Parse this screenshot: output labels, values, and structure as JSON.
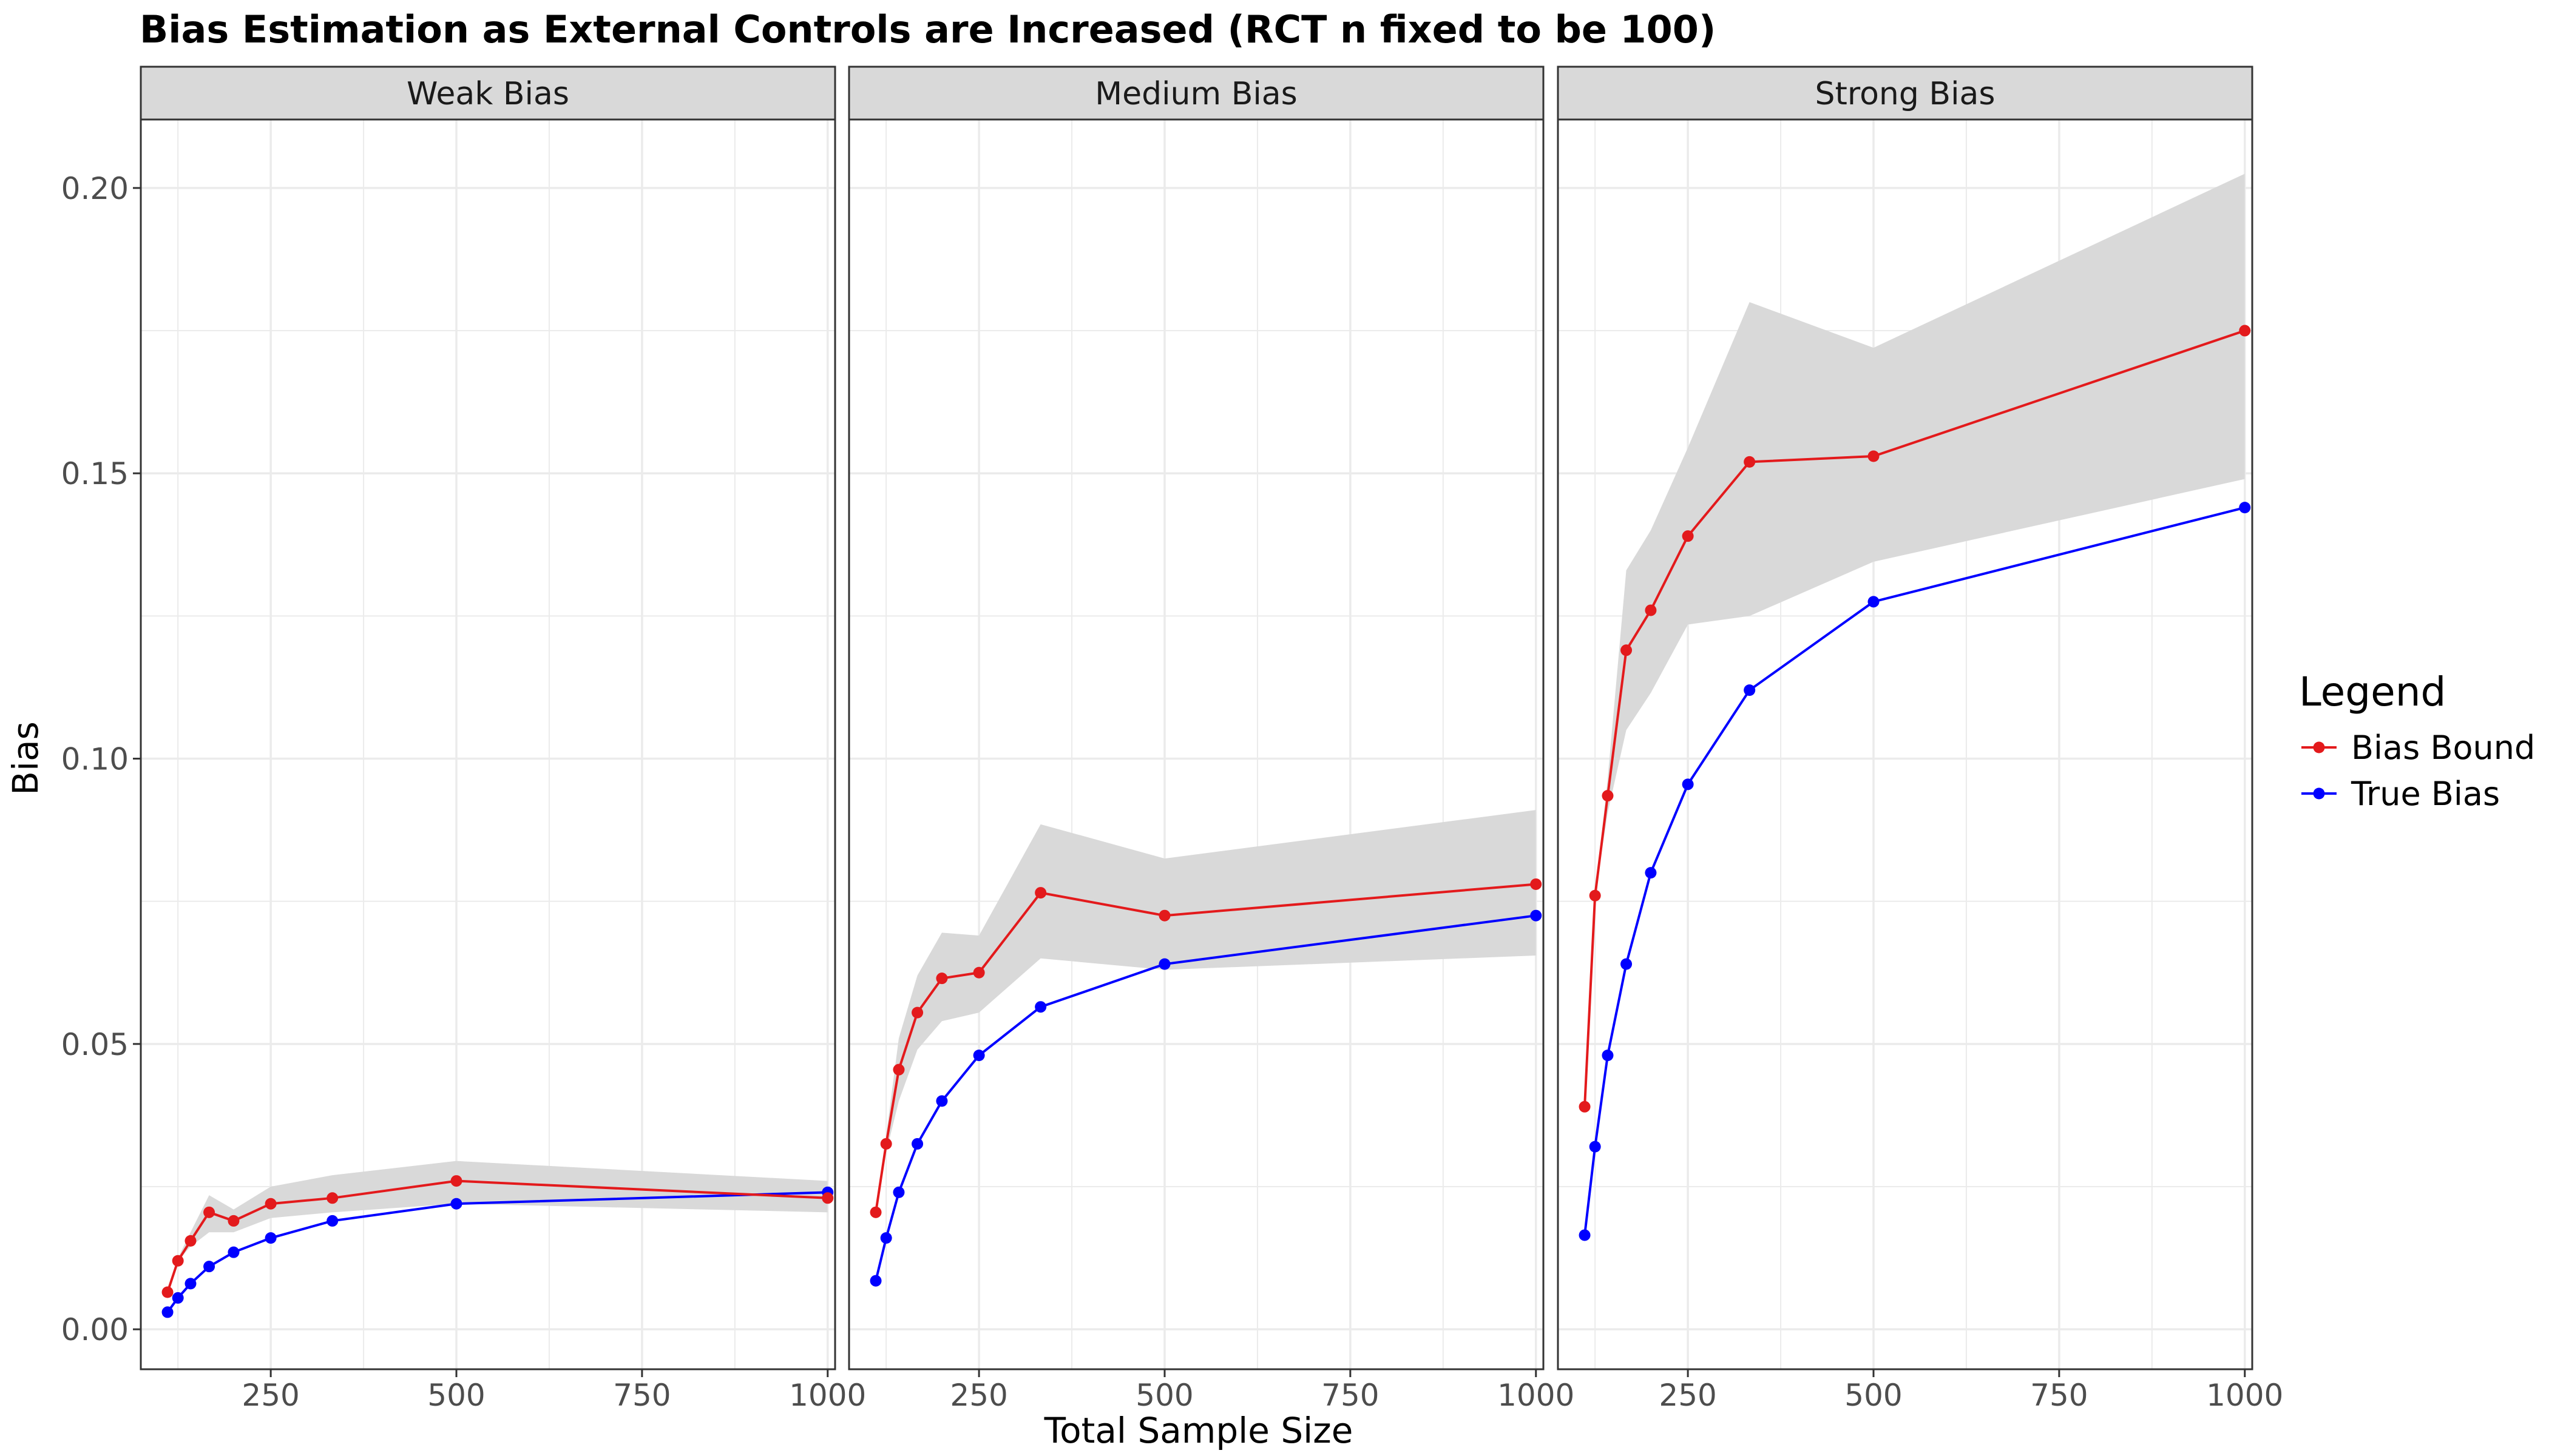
{
  "chart_data": {
    "type": "line",
    "title": "Bias Estimation as External Controls are Increased (RCT n fixed to be 100)",
    "xlabel": "Total Sample Size",
    "ylabel": "Bias",
    "xlim": [
      75,
      1010
    ],
    "ylim": [
      -0.007,
      0.212
    ],
    "x_ticks": [
      250,
      500,
      750,
      1000
    ],
    "x_tick_labels": [
      "250",
      "500",
      "750",
      "1000"
    ],
    "y_ticks": [
      0.0,
      0.05,
      0.1,
      0.15,
      0.2
    ],
    "y_tick_labels": [
      "0.00",
      "0.05",
      "0.10",
      "0.15",
      "0.20"
    ],
    "grid": true,
    "legend": {
      "title": "Legend",
      "position": "right",
      "entries": [
        {
          "name": "Bias Bound",
          "color": "#E31A1C"
        },
        {
          "name": "True Bias",
          "color": "#0000FF"
        }
      ]
    },
    "x": [
      111,
      125,
      142,
      167,
      200,
      250,
      333,
      500,
      1000
    ],
    "panels": [
      {
        "label": "Weak Bias",
        "series": [
          {
            "name": "Bias Bound",
            "values": [
              0.0065,
              0.012,
              0.0155,
              0.0205,
              0.019,
              0.022,
              0.023,
              0.026,
              0.023
            ]
          },
          {
            "name": "True Bias",
            "values": [
              0.003,
              0.0055,
              0.008,
              0.011,
              0.0135,
              0.016,
              0.019,
              0.022,
              0.024
            ]
          }
        ],
        "band_lower": [
          0.0065,
          0.012,
          0.0145,
          0.017,
          0.017,
          0.0195,
          0.0205,
          0.022,
          0.0205
        ],
        "band_upper": [
          0.0065,
          0.0125,
          0.017,
          0.0235,
          0.021,
          0.025,
          0.027,
          0.0295,
          0.026
        ]
      },
      {
        "label": "Medium Bias",
        "series": [
          {
            "name": "Bias Bound",
            "values": [
              0.0205,
              0.0325,
              0.0455,
              0.0555,
              0.0615,
              0.0625,
              0.0765,
              0.0725,
              0.078
            ]
          },
          {
            "name": "True Bias",
            "values": [
              0.0085,
              0.016,
              0.024,
              0.0325,
              0.04,
              0.048,
              0.0565,
              0.064,
              0.0725
            ]
          }
        ],
        "band_lower": [
          0.0205,
          0.031,
          0.04,
          0.049,
          0.054,
          0.0555,
          0.065,
          0.063,
          0.0655
        ],
        "band_upper": [
          0.0205,
          0.034,
          0.051,
          0.062,
          0.0695,
          0.069,
          0.0885,
          0.0825,
          0.091
        ]
      },
      {
        "label": "Strong Bias",
        "series": [
          {
            "name": "Bias Bound",
            "values": [
              0.039,
              0.076,
              0.0935,
              0.119,
              0.126,
              0.139,
              0.152,
              0.153,
              0.175
            ]
          },
          {
            "name": "True Bias",
            "values": [
              0.0165,
              0.032,
              0.048,
              0.064,
              0.08,
              0.0955,
              0.112,
              0.1275,
              0.144
            ]
          }
        ],
        "band_lower": [
          0.039,
          0.076,
          0.0905,
          0.105,
          0.1115,
          0.1235,
          0.125,
          0.1345,
          0.149
        ],
        "band_upper": [
          0.039,
          0.076,
          0.0965,
          0.133,
          0.14,
          0.1545,
          0.18,
          0.172,
          0.2025
        ]
      }
    ]
  },
  "colors": {
    "bias_bound": "#E31A1C",
    "true_bias": "#0000FF",
    "band": "#D9D9D9",
    "strip_bg": "#D9D9D9",
    "grid": "#EBEBEB"
  }
}
